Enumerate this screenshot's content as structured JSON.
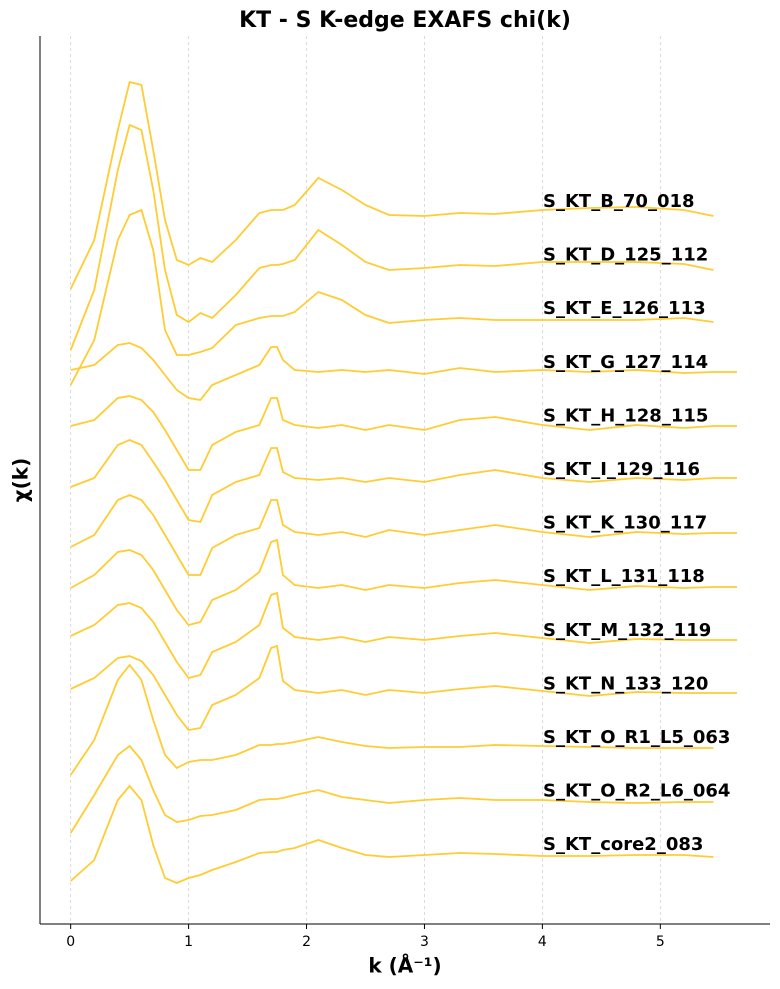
{
  "chart_data": {
    "type": "line",
    "title": "KT - S K-edge EXAFS chi(k)",
    "xlabel": "k (Å⁻¹)",
    "ylabel": "χ(k)",
    "xlim": [
      -0.26,
      5.93
    ],
    "ylim": [
      0,
      8.88
    ],
    "xticks": [
      0,
      1,
      2,
      3,
      4,
      5
    ],
    "grid": true,
    "color": "#ffcc33",
    "x": [
      0,
      0.2,
      0.4,
      0.5,
      0.6,
      0.7,
      0.8,
      0.9,
      1.0,
      1.1,
      1.2,
      1.4,
      1.6,
      1.7,
      1.75,
      1.8,
      1.9,
      2.1,
      2.3,
      2.5,
      2.7,
      3.0,
      3.3,
      3.6,
      4.0,
      4.4,
      4.8,
      5.2,
      5.45,
      5.65
    ],
    "series": [
      {
        "name": "S_KT_B_70_018",
        "values": [
          6.35,
          6.84,
          7.94,
          8.42,
          8.39,
          7.74,
          7.04,
          6.64,
          6.59,
          6.66,
          6.62,
          6.84,
          7.11,
          7.14,
          7.14,
          7.14,
          7.19,
          7.46,
          7.34,
          7.19,
          7.09,
          7.08,
          7.11,
          7.1,
          7.14,
          7.16,
          7.17,
          7.14,
          7.08,
          null
        ]
      },
      {
        "name": "S_KT_D_125_112",
        "values": [
          5.74,
          6.34,
          7.54,
          7.99,
          7.94,
          7.34,
          6.54,
          6.09,
          6.02,
          6.11,
          6.06,
          6.29,
          6.56,
          6.59,
          6.59,
          6.6,
          6.64,
          6.94,
          6.79,
          6.62,
          6.54,
          6.56,
          6.59,
          6.58,
          6.62,
          6.62,
          6.62,
          6.6,
          6.54,
          null
        ]
      },
      {
        "name": "S_KT_E_126_113",
        "values": [
          5.39,
          5.84,
          6.84,
          7.09,
          7.14,
          6.74,
          5.94,
          5.69,
          5.69,
          5.72,
          5.76,
          5.99,
          6.06,
          6.08,
          6.08,
          6.08,
          6.12,
          6.32,
          6.24,
          6.09,
          6.01,
          6.04,
          6.06,
          6.04,
          6.04,
          6.04,
          6.04,
          6.06,
          6.02,
          null
        ]
      },
      {
        "name": "S_KT_G_127_114",
        "values": [
          5.54,
          5.59,
          5.79,
          5.81,
          5.76,
          5.64,
          5.49,
          5.34,
          5.26,
          5.24,
          5.39,
          5.49,
          5.59,
          5.77,
          5.77,
          5.64,
          5.54,
          5.52,
          5.54,
          5.52,
          5.54,
          5.5,
          5.56,
          5.52,
          5.54,
          5.52,
          5.54,
          5.51,
          5.52,
          5.52
        ]
      },
      {
        "name": "S_KT_H_128_115",
        "values": [
          4.98,
          5.04,
          5.26,
          5.28,
          5.24,
          5.12,
          4.94,
          4.74,
          4.54,
          4.54,
          4.79,
          4.92,
          4.99,
          5.26,
          5.26,
          5.04,
          4.99,
          4.96,
          4.99,
          4.94,
          4.99,
          4.94,
          5.04,
          5.07,
          4.99,
          4.94,
          4.99,
          4.96,
          4.98,
          4.98
        ]
      },
      {
        "name": "S_KT_I_129_116",
        "values": [
          4.37,
          4.46,
          4.79,
          4.84,
          4.79,
          4.62,
          4.44,
          4.24,
          4.04,
          4.02,
          4.29,
          4.42,
          4.49,
          4.76,
          4.76,
          4.52,
          4.46,
          4.44,
          4.46,
          4.42,
          4.46,
          4.42,
          4.49,
          4.54,
          4.46,
          4.42,
          4.46,
          4.44,
          4.46,
          4.46
        ]
      },
      {
        "name": "S_KT_K_130_117",
        "values": [
          3.77,
          3.89,
          4.24,
          4.29,
          4.24,
          4.09,
          3.89,
          3.69,
          3.49,
          3.49,
          3.76,
          3.89,
          3.96,
          4.24,
          4.24,
          3.99,
          3.92,
          3.89,
          3.92,
          3.87,
          3.94,
          3.89,
          3.94,
          3.99,
          3.92,
          3.87,
          3.92,
          3.9,
          3.91,
          3.91
        ]
      },
      {
        "name": "S_KT_L_131_118",
        "values": [
          3.36,
          3.49,
          3.72,
          3.74,
          3.69,
          3.54,
          3.34,
          3.14,
          2.99,
          3.02,
          3.24,
          3.34,
          3.52,
          3.82,
          3.84,
          3.49,
          3.39,
          3.36,
          3.39,
          3.34,
          3.39,
          3.36,
          3.41,
          3.44,
          3.39,
          3.34,
          3.38,
          3.36,
          3.37,
          3.37
        ]
      },
      {
        "name": "S_KT_M_132_119",
        "values": [
          2.88,
          2.99,
          3.19,
          3.21,
          3.16,
          3.02,
          2.82,
          2.62,
          2.46,
          2.49,
          2.72,
          2.82,
          2.99,
          3.29,
          3.31,
          2.96,
          2.87,
          2.84,
          2.87,
          2.82,
          2.87,
          2.84,
          2.88,
          2.91,
          2.86,
          2.81,
          2.85,
          2.84,
          2.84,
          2.84
        ]
      },
      {
        "name": "S_KT_N_133_120",
        "values": [
          2.35,
          2.46,
          2.66,
          2.68,
          2.63,
          2.49,
          2.29,
          2.09,
          1.94,
          1.96,
          2.19,
          2.29,
          2.46,
          2.76,
          2.78,
          2.43,
          2.34,
          2.31,
          2.34,
          2.29,
          2.34,
          2.31,
          2.35,
          2.38,
          2.33,
          2.28,
          2.32,
          2.31,
          2.31,
          2.31
        ]
      },
      {
        "name": "S_KT_O_R1_L5_063",
        "values": [
          1.49,
          1.84,
          2.44,
          2.59,
          2.44,
          2.04,
          1.69,
          1.56,
          1.62,
          1.64,
          1.64,
          1.69,
          1.79,
          1.79,
          1.8,
          1.8,
          1.82,
          1.87,
          1.82,
          1.78,
          1.76,
          1.77,
          1.77,
          1.79,
          1.78,
          1.77,
          1.76,
          1.76,
          1.76,
          null
        ]
      },
      {
        "name": "S_KT_O_R2_L6_064",
        "values": [
          0.91,
          1.29,
          1.69,
          1.78,
          1.64,
          1.34,
          1.09,
          1.02,
          1.04,
          1.08,
          1.09,
          1.14,
          1.24,
          1.25,
          1.25,
          1.26,
          1.29,
          1.34,
          1.27,
          1.24,
          1.21,
          1.24,
          1.26,
          1.24,
          1.24,
          1.22,
          1.21,
          1.22,
          1.22,
          null
        ]
      },
      {
        "name": "S_KT_core2_083",
        "values": [
          0.43,
          0.64,
          1.24,
          1.38,
          1.24,
          0.79,
          0.46,
          0.41,
          0.46,
          0.49,
          0.54,
          0.62,
          0.71,
          0.72,
          0.72,
          0.74,
          0.76,
          0.84,
          0.76,
          0.69,
          0.67,
          0.69,
          0.71,
          0.7,
          0.68,
          0.68,
          0.69,
          0.69,
          0.67,
          null
        ]
      }
    ]
  }
}
